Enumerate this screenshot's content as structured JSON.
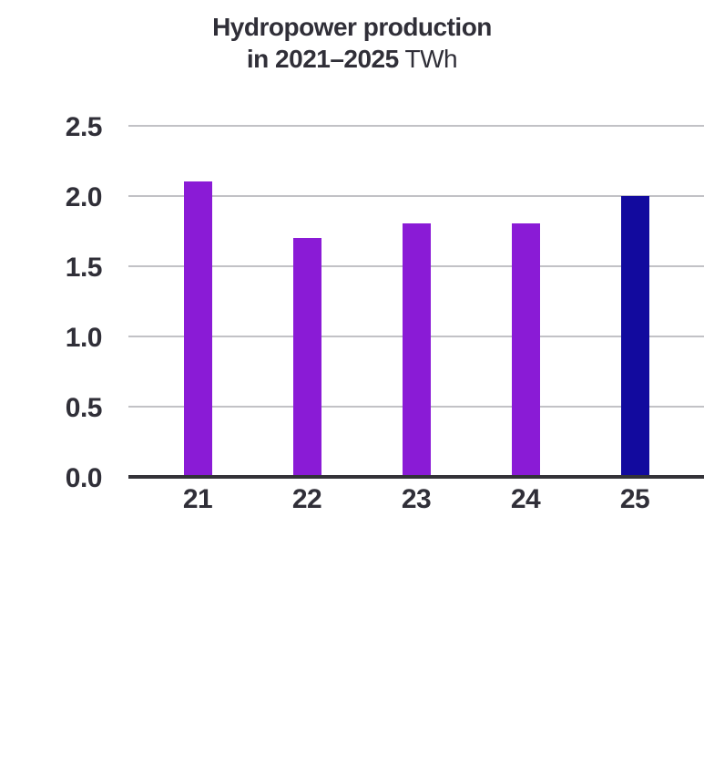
{
  "page": {
    "background": "#ffffff"
  },
  "chart_data": {
    "type": "bar",
    "title": {
      "line1": "Hydropower production",
      "line2_bold": "in 2021–2025",
      "line2_unit": " TWh"
    },
    "unit": "TWh",
    "categories": [
      "21",
      "22",
      "23",
      "24",
      "25"
    ],
    "values": [
      2.1,
      1.7,
      1.8,
      1.8,
      2.0
    ],
    "ylim": [
      0,
      2.5
    ],
    "yticks": [
      0.0,
      0.5,
      1.0,
      1.5,
      2.0,
      2.5
    ],
    "ytick_labels": [
      "0.0",
      "0.5",
      "1.0",
      "1.5",
      "2.0",
      "2.5"
    ],
    "xlabel": "",
    "ylabel": "",
    "grid": "horizontal",
    "legend": "none",
    "bar_colors": [
      "#8a1bd6",
      "#8a1bd6",
      "#8a1bd6",
      "#8a1bd6",
      "#120a9e"
    ],
    "colors": {
      "bar_default": "#8a1bd6",
      "bar_highlight": "#120a9e",
      "gridline": "#c2c2c6",
      "axis": "#333238",
      "text": "#302f38"
    }
  }
}
